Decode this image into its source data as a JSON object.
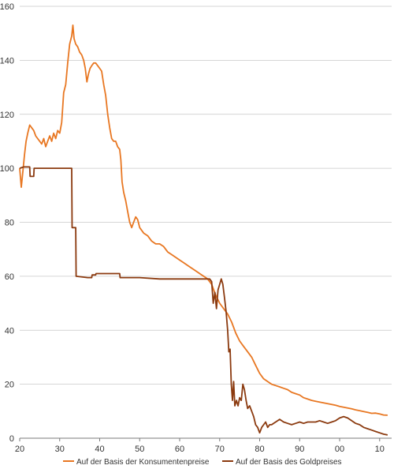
{
  "chart_data": {
    "type": "line",
    "title": "",
    "xlabel": "",
    "ylabel": "",
    "xlim": [
      1920,
      2013
    ],
    "ylim": [
      0,
      160
    ],
    "x_ticks": [
      1920,
      1930,
      1940,
      1950,
      1960,
      1970,
      1980,
      1990,
      2000,
      2010
    ],
    "x_tick_labels": [
      "20",
      "30",
      "40",
      "50",
      "60",
      "70",
      "80",
      "90",
      "00",
      "10"
    ],
    "y_ticks": [
      0,
      20,
      40,
      60,
      80,
      100,
      120,
      140,
      160
    ],
    "y_tick_labels": [
      "0",
      "20",
      "40",
      "60",
      "80",
      "100",
      "120",
      "140",
      "160"
    ],
    "grid": "horizontal",
    "legend_position": "bottom",
    "series": [
      {
        "name": "Auf der Basis der Konsumentenpreise",
        "color": "#e87722",
        "points": [
          [
            1920.0,
            100
          ],
          [
            1920.4,
            93
          ],
          [
            1920.8,
            99
          ],
          [
            1921.2,
            105
          ],
          [
            1921.6,
            110
          ],
          [
            1922.0,
            113
          ],
          [
            1922.5,
            116
          ],
          [
            1923.0,
            115
          ],
          [
            1923.5,
            114
          ],
          [
            1924.0,
            112
          ],
          [
            1924.5,
            111
          ],
          [
            1925.0,
            110
          ],
          [
            1925.5,
            109
          ],
          [
            1926.0,
            111
          ],
          [
            1926.5,
            108
          ],
          [
            1927.0,
            110
          ],
          [
            1927.5,
            112
          ],
          [
            1928.0,
            110
          ],
          [
            1928.5,
            113
          ],
          [
            1929.0,
            111
          ],
          [
            1929.5,
            114
          ],
          [
            1930.0,
            113
          ],
          [
            1930.5,
            117
          ],
          [
            1931.0,
            128
          ],
          [
            1931.5,
            131
          ],
          [
            1932.0,
            139
          ],
          [
            1932.5,
            146
          ],
          [
            1933.0,
            149
          ],
          [
            1933.3,
            153
          ],
          [
            1933.6,
            148
          ],
          [
            1934.0,
            146
          ],
          [
            1934.5,
            145
          ],
          [
            1935.0,
            143
          ],
          [
            1935.5,
            142
          ],
          [
            1936.0,
            140
          ],
          [
            1936.4,
            137
          ],
          [
            1936.8,
            132
          ],
          [
            1937.2,
            135
          ],
          [
            1937.6,
            137
          ],
          [
            1938.0,
            138
          ],
          [
            1938.5,
            139
          ],
          [
            1939.0,
            139
          ],
          [
            1939.5,
            138
          ],
          [
            1940.0,
            137
          ],
          [
            1940.5,
            136
          ],
          [
            1941.0,
            131
          ],
          [
            1941.5,
            127
          ],
          [
            1942.0,
            120
          ],
          [
            1942.5,
            115
          ],
          [
            1943.0,
            111
          ],
          [
            1943.5,
            110
          ],
          [
            1944.0,
            110
          ],
          [
            1944.5,
            108
          ],
          [
            1945.0,
            107
          ],
          [
            1945.3,
            103
          ],
          [
            1945.6,
            95
          ],
          [
            1946.0,
            91
          ],
          [
            1946.5,
            88
          ],
          [
            1947.0,
            84
          ],
          [
            1947.5,
            80
          ],
          [
            1948.0,
            78
          ],
          [
            1948.5,
            80
          ],
          [
            1949.0,
            82
          ],
          [
            1949.5,
            81
          ],
          [
            1950.0,
            78
          ],
          [
            1951.0,
            76
          ],
          [
            1952.0,
            75
          ],
          [
            1953.0,
            73
          ],
          [
            1954.0,
            72
          ],
          [
            1955.0,
            72
          ],
          [
            1956.0,
            71
          ],
          [
            1957.0,
            69
          ],
          [
            1958.0,
            68
          ],
          [
            1959.0,
            67
          ],
          [
            1960.0,
            66
          ],
          [
            1961.0,
            65
          ],
          [
            1962.0,
            64
          ],
          [
            1963.0,
            63
          ],
          [
            1964.0,
            62
          ],
          [
            1965.0,
            61
          ],
          [
            1966.0,
            60
          ],
          [
            1967.0,
            59
          ],
          [
            1968.0,
            57
          ],
          [
            1969.0,
            53
          ],
          [
            1970.0,
            50
          ],
          [
            1971.0,
            48
          ],
          [
            1972.0,
            46
          ],
          [
            1973.0,
            43
          ],
          [
            1974.0,
            39
          ],
          [
            1975.0,
            36
          ],
          [
            1976.0,
            34
          ],
          [
            1977.0,
            32
          ],
          [
            1978.0,
            30
          ],
          [
            1979.0,
            27
          ],
          [
            1980.0,
            24
          ],
          [
            1981.0,
            22
          ],
          [
            1982.0,
            21
          ],
          [
            1983.0,
            20
          ],
          [
            1984.0,
            19.5
          ],
          [
            1985.0,
            19
          ],
          [
            1986.0,
            18.5
          ],
          [
            1987.0,
            18
          ],
          [
            1988.0,
            17
          ],
          [
            1989.0,
            16.5
          ],
          [
            1990.0,
            16
          ],
          [
            1991.0,
            15
          ],
          [
            1992.0,
            14.5
          ],
          [
            1993.0,
            14
          ],
          [
            1994.0,
            13.7
          ],
          [
            1995.0,
            13.4
          ],
          [
            1996.0,
            13.1
          ],
          [
            1997.0,
            12.8
          ],
          [
            1998.0,
            12.5
          ],
          [
            1999.0,
            12.2
          ],
          [
            2000.0,
            11.8
          ],
          [
            2001.0,
            11.5
          ],
          [
            2002.0,
            11.2
          ],
          [
            2003.0,
            10.9
          ],
          [
            2004.0,
            10.5
          ],
          [
            2005.0,
            10.2
          ],
          [
            2006.0,
            9.9
          ],
          [
            2007.0,
            9.6
          ],
          [
            2008.0,
            9.2
          ],
          [
            2009.0,
            9.3
          ],
          [
            2010.0,
            9.0
          ],
          [
            2011.0,
            8.6
          ],
          [
            2012.0,
            8.5
          ]
        ]
      },
      {
        "name": "Auf der Basis des Goldpreises",
        "color": "#8b3a0f",
        "points": [
          [
            1920.0,
            100
          ],
          [
            1921.0,
            100.5
          ],
          [
            1922.5,
            100.5
          ],
          [
            1922.6,
            97
          ],
          [
            1923.5,
            97
          ],
          [
            1923.6,
            100
          ],
          [
            1924.0,
            100
          ],
          [
            1933.0,
            100
          ],
          [
            1933.1,
            78
          ],
          [
            1934.0,
            78
          ],
          [
            1934.1,
            60
          ],
          [
            1937.0,
            59.5
          ],
          [
            1938.0,
            59.5
          ],
          [
            1938.1,
            60.5
          ],
          [
            1939.0,
            60.5
          ],
          [
            1939.1,
            61
          ],
          [
            1945.0,
            61
          ],
          [
            1945.1,
            59.5
          ],
          [
            1950.0,
            59.5
          ],
          [
            1955.0,
            59
          ],
          [
            1960.0,
            59
          ],
          [
            1965.0,
            59
          ],
          [
            1967.5,
            59
          ],
          [
            1968.0,
            58
          ],
          [
            1968.4,
            50
          ],
          [
            1968.8,
            54
          ],
          [
            1969.2,
            48
          ],
          [
            1969.6,
            55
          ],
          [
            1970.0,
            57
          ],
          [
            1970.4,
            59
          ],
          [
            1970.8,
            57
          ],
          [
            1971.2,
            52
          ],
          [
            1971.6,
            47
          ],
          [
            1972.0,
            40
          ],
          [
            1972.3,
            32
          ],
          [
            1972.6,
            33
          ],
          [
            1972.9,
            20
          ],
          [
            1973.2,
            14
          ],
          [
            1973.5,
            21
          ],
          [
            1973.8,
            12
          ],
          [
            1974.2,
            14
          ],
          [
            1974.6,
            12
          ],
          [
            1975.0,
            15
          ],
          [
            1975.4,
            14
          ],
          [
            1975.8,
            20
          ],
          [
            1976.2,
            18
          ],
          [
            1976.6,
            14
          ],
          [
            1977.0,
            11
          ],
          [
            1977.5,
            12
          ],
          [
            1978.0,
            10
          ],
          [
            1978.5,
            8
          ],
          [
            1979.0,
            5
          ],
          [
            1979.5,
            4
          ],
          [
            1980.0,
            2
          ],
          [
            1980.5,
            4
          ],
          [
            1981.0,
            5
          ],
          [
            1981.5,
            6
          ],
          [
            1982.0,
            4
          ],
          [
            1982.5,
            5
          ],
          [
            1983.0,
            5
          ],
          [
            1984.0,
            6
          ],
          [
            1985.0,
            7
          ],
          [
            1986.0,
            6
          ],
          [
            1987.0,
            5.5
          ],
          [
            1988.0,
            5
          ],
          [
            1989.0,
            5.5
          ],
          [
            1990.0,
            6
          ],
          [
            1991.0,
            5.5
          ],
          [
            1992.0,
            6
          ],
          [
            1993.0,
            6
          ],
          [
            1994.0,
            6
          ],
          [
            1995.0,
            6.5
          ],
          [
            1996.0,
            6
          ],
          [
            1997.0,
            5.5
          ],
          [
            1998.0,
            6
          ],
          [
            1999.0,
            6.5
          ],
          [
            2000.0,
            7.5
          ],
          [
            2001.0,
            8
          ],
          [
            2002.0,
            7.5
          ],
          [
            2003.0,
            6.5
          ],
          [
            2004.0,
            5.5
          ],
          [
            2005.0,
            5
          ],
          [
            2006.0,
            4
          ],
          [
            2007.0,
            3.5
          ],
          [
            2008.0,
            3
          ],
          [
            2009.0,
            2.5
          ],
          [
            2010.0,
            2
          ],
          [
            2011.0,
            1.5
          ],
          [
            2012.0,
            1.2
          ]
        ]
      }
    ]
  }
}
